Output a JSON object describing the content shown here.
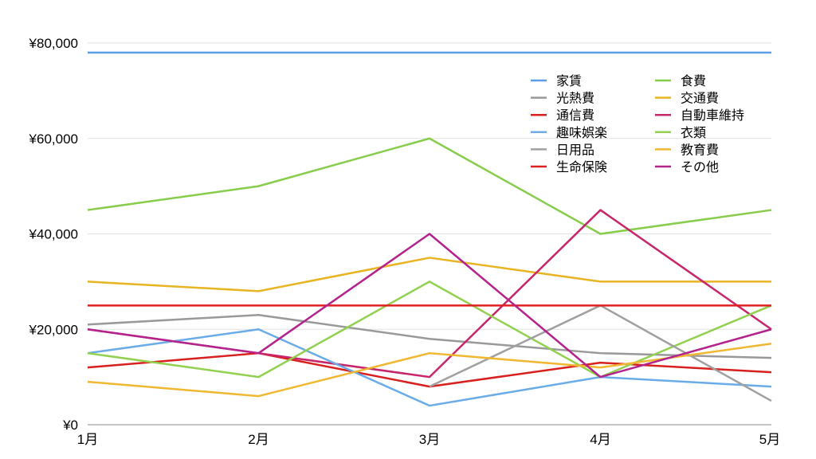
{
  "chart_data": {
    "type": "line",
    "title": "",
    "xlabel": "",
    "ylabel": "",
    "categories": [
      "1月",
      "2月",
      "3月",
      "4月",
      "5月"
    ],
    "ylim": [
      0,
      80000
    ],
    "yticks": [
      0,
      20000,
      40000,
      60000,
      80000
    ],
    "ytick_labels": [
      "¥0",
      "¥20,000",
      "¥40,000",
      "¥60,000",
      "¥80,000"
    ],
    "grid": true,
    "legend_position": "top-right",
    "series": [
      {
        "name": "家賃",
        "color": "#5b9ee8",
        "values": [
          78000,
          78000,
          78000,
          78000,
          78000
        ]
      },
      {
        "name": "食費",
        "color": "#88cc4c",
        "values": [
          45000,
          50000,
          60000,
          40000,
          45000
        ]
      },
      {
        "name": "光熱費",
        "color": "#999999",
        "values": [
          21000,
          23000,
          18000,
          15000,
          14000
        ]
      },
      {
        "name": "交通費",
        "color": "#e8b422",
        "values": [
          30000,
          28000,
          35000,
          30000,
          30000
        ]
      },
      {
        "name": "通信費",
        "color": "#d8201e",
        "values": [
          12000,
          15000,
          8000,
          13000,
          11000
        ]
      },
      {
        "name": "自動車維持",
        "color": "#c8266a",
        "values": [
          20000,
          15000,
          10000,
          45000,
          20000
        ]
      },
      {
        "name": "趣味娯楽",
        "color": "#6aace8",
        "values": [
          15000,
          20000,
          4000,
          10000,
          8000
        ]
      },
      {
        "name": "衣類",
        "color": "#92d150",
        "values": [
          15000,
          10000,
          30000,
          10000,
          25000
        ]
      },
      {
        "name": "日用品",
        "color": "#a0a0a0",
        "values": [
          null,
          null,
          8000,
          25000,
          5000
        ]
      },
      {
        "name": "教育費",
        "color": "#f0b830",
        "values": [
          9000,
          6000,
          15000,
          12000,
          17000
        ]
      },
      {
        "name": "生命保険",
        "color": "#e02020",
        "values": [
          25000,
          25000,
          25000,
          25000,
          25000
        ]
      },
      {
        "name": "その他",
        "color": "#b4238c",
        "values": [
          20000,
          15000,
          40000,
          10000,
          20000
        ]
      }
    ]
  }
}
